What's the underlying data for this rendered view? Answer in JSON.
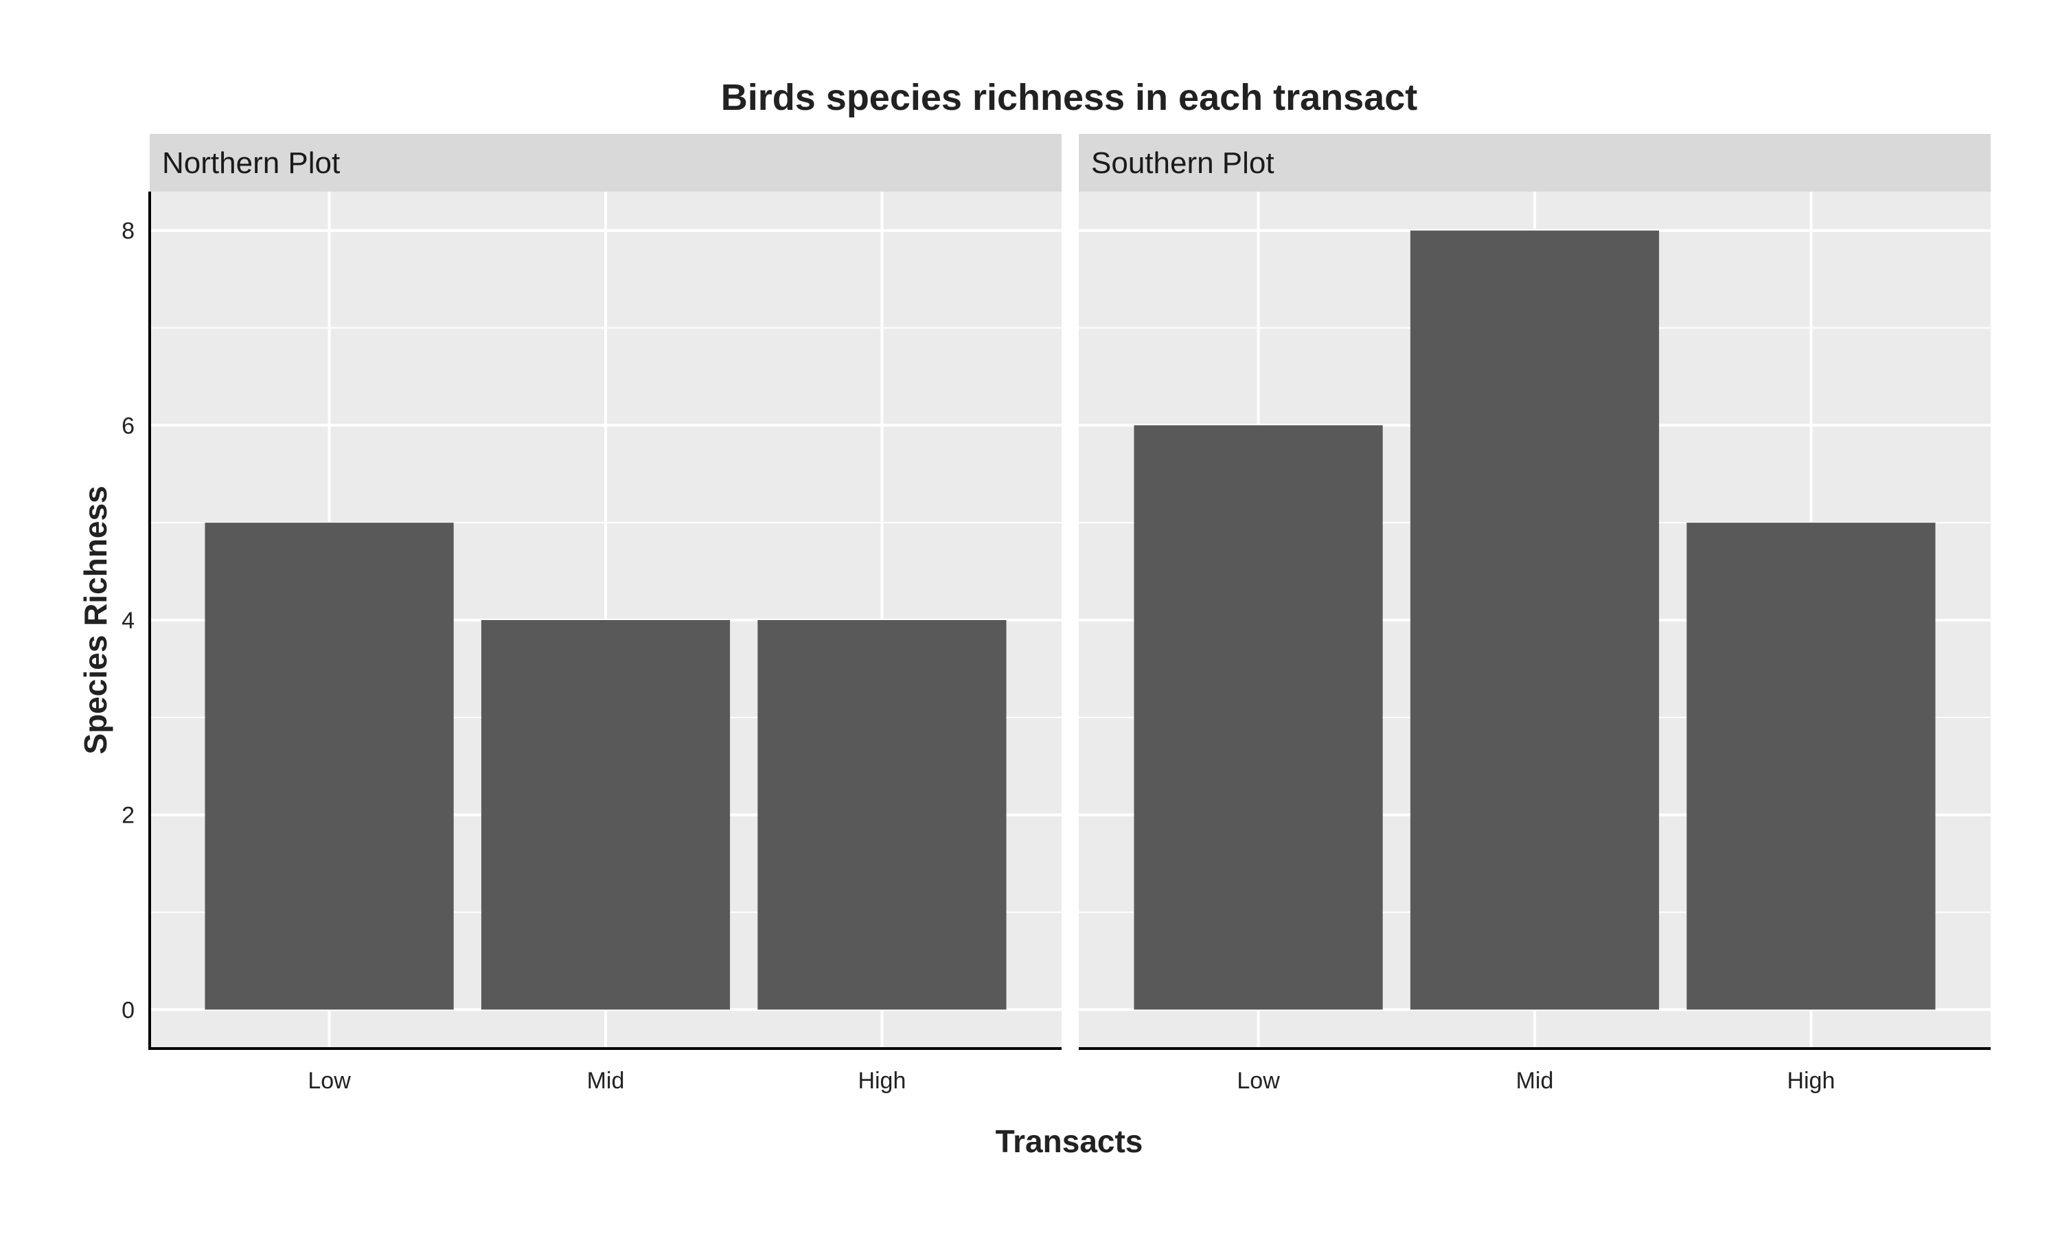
{
  "chart_data": {
    "type": "bar",
    "title": "Birds species richness in each transact",
    "xlabel": "Transacts",
    "ylabel": "Species Richness",
    "categories": [
      "Low",
      "Mid",
      "High"
    ],
    "ylim": [
      -0.4,
      8.4
    ],
    "yticks": [
      0,
      2,
      4,
      6,
      8
    ],
    "grid": true,
    "facets": [
      {
        "name": "Northern Plot",
        "values": [
          5,
          4,
          4
        ]
      },
      {
        "name": "Southern Plot",
        "values": [
          6,
          8,
          5
        ]
      }
    ],
    "colors": {
      "bar": "#595959",
      "panel_background": "#ebebeb",
      "strip_background": "#d9d9d9",
      "grid": "#ffffff",
      "axis_line": "#000000"
    }
  }
}
